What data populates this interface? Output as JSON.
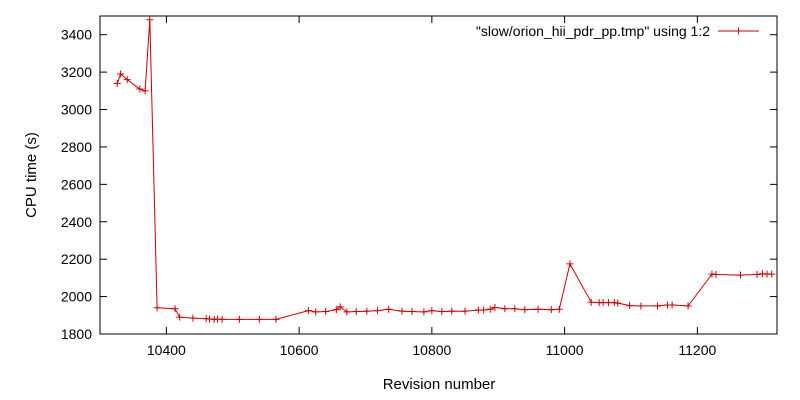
{
  "chart_data": {
    "type": "line",
    "title": "",
    "xlabel": "Revision number",
    "ylabel": "CPU time (s)",
    "xlim": [
      10300,
      11320
    ],
    "ylim": [
      1800,
      3500
    ],
    "xticks": [
      10400,
      10600,
      10800,
      11000,
      11200
    ],
    "yticks": [
      1800,
      2000,
      2200,
      2400,
      2600,
      2800,
      3000,
      3200,
      3400
    ],
    "grid": false,
    "legend_position": "top-right",
    "series": [
      {
        "name": "\"slow/orion_hii_pdr_pp.tmp\" using 1:2",
        "color": "#cc0000",
        "marker": "plus",
        "points": [
          [
            10326,
            3140
          ],
          [
            10331,
            3190
          ],
          [
            10341,
            3160
          ],
          [
            10360,
            3110
          ],
          [
            10368,
            3100
          ],
          [
            10375,
            3480
          ],
          [
            10386,
            1940
          ],
          [
            10413,
            1935
          ],
          [
            10420,
            1890
          ],
          [
            10440,
            1885
          ],
          [
            10460,
            1882
          ],
          [
            10465,
            1880
          ],
          [
            10472,
            1878
          ],
          [
            10477,
            1880
          ],
          [
            10484,
            1878
          ],
          [
            10510,
            1878
          ],
          [
            10540,
            1878
          ],
          [
            10565,
            1878
          ],
          [
            10614,
            1925
          ],
          [
            10625,
            1918
          ],
          [
            10640,
            1920
          ],
          [
            10656,
            1930
          ],
          [
            10662,
            1945
          ],
          [
            10672,
            1918
          ],
          [
            10686,
            1920
          ],
          [
            10702,
            1922
          ],
          [
            10718,
            1925
          ],
          [
            10735,
            1932
          ],
          [
            10755,
            1922
          ],
          [
            10770,
            1920
          ],
          [
            10788,
            1918
          ],
          [
            10800,
            1925
          ],
          [
            10815,
            1920
          ],
          [
            10830,
            1922
          ],
          [
            10850,
            1922
          ],
          [
            10870,
            1928
          ],
          [
            10878,
            1928
          ],
          [
            10888,
            1932
          ],
          [
            10895,
            1942
          ],
          [
            10910,
            1935
          ],
          [
            10925,
            1935
          ],
          [
            10940,
            1930
          ],
          [
            10960,
            1932
          ],
          [
            10980,
            1930
          ],
          [
            10992,
            1932
          ],
          [
            11008,
            2175
          ],
          [
            11040,
            1970
          ],
          [
            11052,
            1968
          ],
          [
            11058,
            1968
          ],
          [
            11066,
            1968
          ],
          [
            11075,
            1968
          ],
          [
            11080,
            1965
          ],
          [
            11098,
            1952
          ],
          [
            11115,
            1950
          ],
          [
            11140,
            1950
          ],
          [
            11155,
            1955
          ],
          [
            11162,
            1955
          ],
          [
            11186,
            1950
          ],
          [
            11222,
            2120
          ],
          [
            11228,
            2118
          ],
          [
            11265,
            2115
          ],
          [
            11290,
            2118
          ],
          [
            11298,
            2122
          ],
          [
            11305,
            2120
          ],
          [
            11312,
            2120
          ]
        ]
      }
    ]
  }
}
